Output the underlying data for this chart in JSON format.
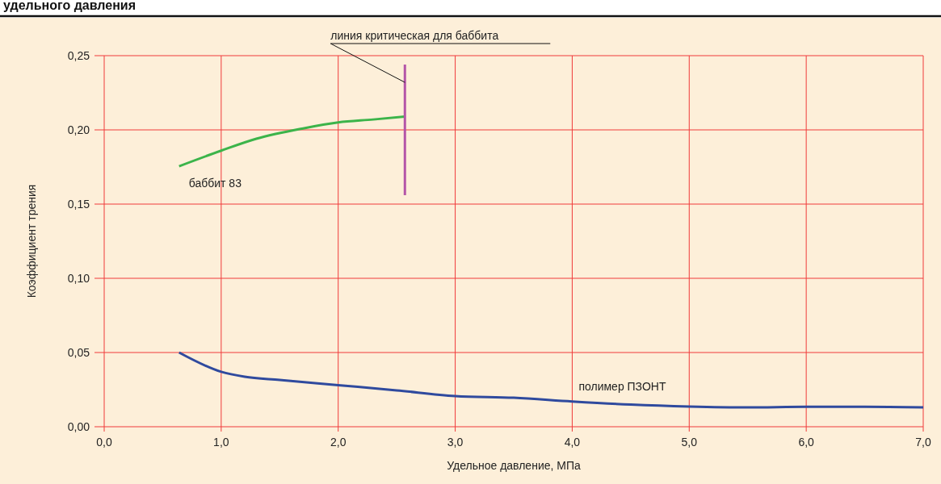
{
  "chart_data": {
    "type": "line",
    "title": "удельного давления",
    "xlabel": "Удельное давление, МПа",
    "ylabel": "Коэффициент трения",
    "xlim": [
      0,
      7
    ],
    "ylim": [
      0,
      0.25
    ],
    "xticks": [
      {
        "value": 0,
        "label": "0,0"
      },
      {
        "value": 1,
        "label": "1,0"
      },
      {
        "value": 2,
        "label": "2,0"
      },
      {
        "value": 3,
        "label": "3,0"
      },
      {
        "value": 4,
        "label": "4,0"
      },
      {
        "value": 5,
        "label": "5,0"
      },
      {
        "value": 6,
        "label": "6,0"
      },
      {
        "value": 7,
        "label": "7,0"
      }
    ],
    "yticks": [
      {
        "value": 0,
        "label": "0,00"
      },
      {
        "value": 0.05,
        "label": "0,05"
      },
      {
        "value": 0.1,
        "label": "0,10"
      },
      {
        "value": 0.15,
        "label": "0,15"
      },
      {
        "value": 0.2,
        "label": "0,20"
      },
      {
        "value": 0.25,
        "label": "0,25"
      }
    ],
    "grid": true,
    "marker": "none",
    "line_style": "solid",
    "series": [
      {
        "name": "баббит 83",
        "color": "#3cb44a",
        "x": [
          0.64,
          1.0,
          1.3,
          1.7,
          2.0,
          2.3,
          2.57
        ],
        "values": [
          0.1755,
          0.186,
          0.194,
          0.201,
          0.205,
          0.207,
          0.209
        ]
      },
      {
        "name": "полимер ПЗОНТ",
        "color": "#2f4a9e",
        "x": [
          0.64,
          1.0,
          1.2,
          1.5,
          2.0,
          2.5,
          3.0,
          3.5,
          4.0,
          4.5,
          5.0,
          5.5,
          6.0,
          6.5,
          7.0
        ],
        "values": [
          0.05,
          0.037,
          0.0337,
          0.0315,
          0.028,
          0.0245,
          0.0207,
          0.0195,
          0.017,
          0.0149,
          0.0136,
          0.013,
          0.0134,
          0.0134,
          0.013
        ]
      },
      {
        "color": "#b455a8",
        "x": [
          2.57,
          2.57
        ],
        "values": [
          0.244,
          0.156
        ]
      }
    ],
    "annotations": [
      {
        "text": "линия критическая для баббита",
        "x": 2.57,
        "y": 0.232
      }
    ]
  }
}
